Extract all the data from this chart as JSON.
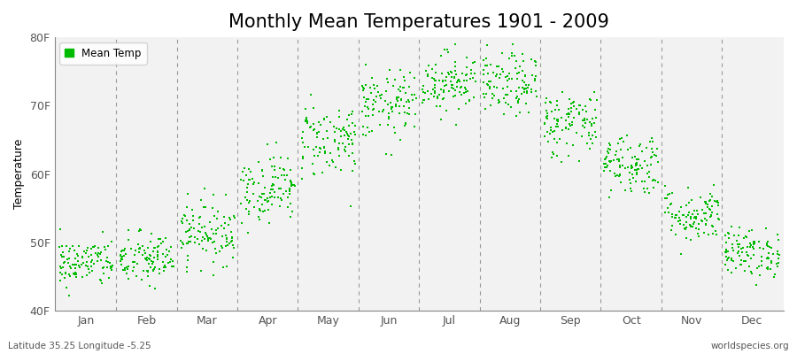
{
  "title": "Monthly Mean Temperatures 1901 - 2009",
  "ylabel": "Temperature",
  "xlabel_bottom_left": "Latitude 35.25 Longitude -5.25",
  "xlabel_bottom_right": "worldspecies.org",
  "ytick_labels": [
    "40F",
    "50F",
    "60F",
    "70F",
    "80F"
  ],
  "ytick_values": [
    40,
    50,
    60,
    70,
    80
  ],
  "ylim": [
    40,
    80
  ],
  "months": [
    "Jan",
    "Feb",
    "Mar",
    "Apr",
    "May",
    "Jun",
    "Jul",
    "Aug",
    "Sep",
    "Oct",
    "Nov",
    "Dec"
  ],
  "dot_color": "#00bb00",
  "bg_color": "#ffffff",
  "plot_bg_color": "#f2f2f2",
  "legend_label": "Mean Temp",
  "title_fontsize": 15,
  "axis_fontsize": 9,
  "n_years": 109,
  "seed": 42,
  "monthly_mean_temps": [
    47.0,
    47.5,
    51.5,
    58.0,
    65.0,
    70.0,
    73.5,
    73.0,
    67.5,
    61.5,
    54.0,
    48.5
  ],
  "monthly_std_temps": [
    1.8,
    2.0,
    2.3,
    2.5,
    2.8,
    2.5,
    2.2,
    2.3,
    2.5,
    2.3,
    2.0,
    1.8
  ]
}
